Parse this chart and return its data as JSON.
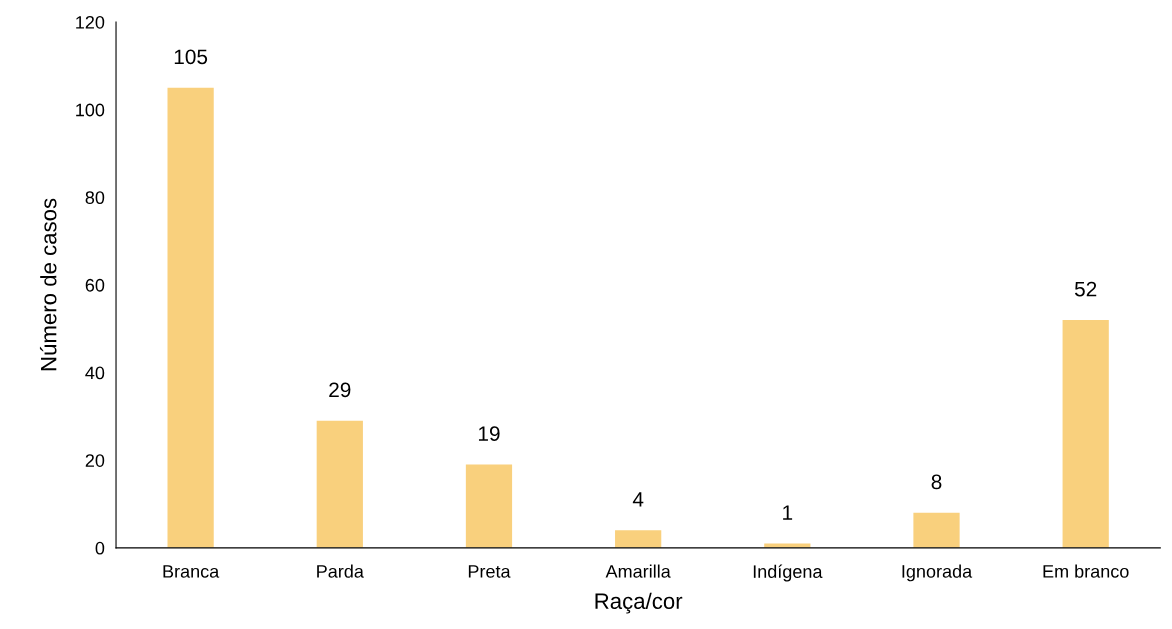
{
  "chart_data": {
    "type": "bar",
    "xlabel": "Raça/cor",
    "ylabel": "Número de casos",
    "categories": [
      "Branca",
      "Parda",
      "Preta",
      "Amarilla",
      "Indígena",
      "Ignorada",
      "Em branco"
    ],
    "values": [
      105,
      29,
      19,
      4,
      1,
      8,
      52
    ],
    "color": "#f9d07d",
    "ylim": [
      0,
      120
    ],
    "yticks": [
      0,
      20,
      40,
      60,
      80,
      100,
      120
    ],
    "data_labels": true,
    "grid": false,
    "legend": false
  }
}
